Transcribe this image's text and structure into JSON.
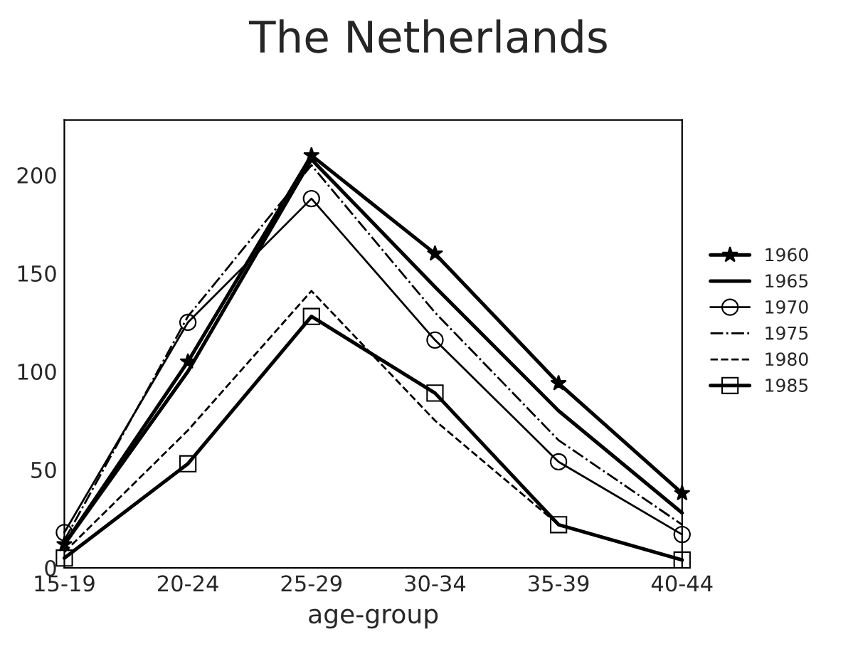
{
  "chart_data": {
    "type": "line",
    "title": "The Netherlands",
    "xlabel": "age-group",
    "categories": [
      "15-19",
      "20-24",
      "25-29",
      "30-34",
      "35-39",
      "40-44"
    ],
    "series": [
      {
        "name": "1960",
        "color": "#000000",
        "marker": "star",
        "line_style": "solid",
        "values": [
          12,
          105,
          210,
          160,
          94,
          38
        ]
      },
      {
        "name": "1965",
        "color": "#000000",
        "marker": "none",
        "line_style": "solid",
        "values": [
          12,
          100,
          208,
          143,
          80,
          28
        ]
      },
      {
        "name": "1970",
        "color": "#000000",
        "marker": "circle",
        "line_style": "solid",
        "values": [
          18,
          125,
          188,
          116,
          54,
          17
        ]
      },
      {
        "name": "1975",
        "color": "#000000",
        "marker": "none",
        "line_style": "dashdot",
        "values": [
          14,
          128,
          205,
          130,
          65,
          22
        ]
      },
      {
        "name": "1980",
        "color": "#000000",
        "marker": "none",
        "line_style": "dashed",
        "values": [
          8,
          70,
          141,
          75,
          22,
          4
        ]
      },
      {
        "name": "1985",
        "color": "#000000",
        "marker": "square",
        "line_style": "solid",
        "values": [
          5,
          53,
          128,
          89,
          22,
          4
        ]
      }
    ],
    "ylim": [
      0,
      228
    ],
    "yticks": [
      0,
      50,
      100,
      150,
      200
    ],
    "grid": false,
    "legend": "right"
  }
}
